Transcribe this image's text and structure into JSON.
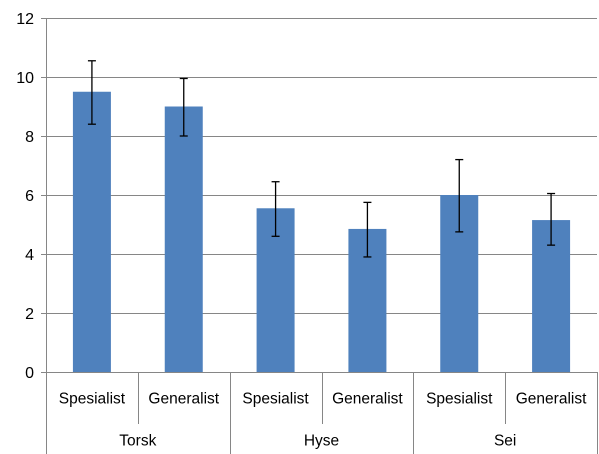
{
  "chart_data": {
    "type": "bar",
    "title": "",
    "xlabel": "",
    "ylabel": "",
    "ylim": [
      0,
      12
    ],
    "yticks": [
      0,
      2,
      4,
      6,
      8,
      10,
      12
    ],
    "grid": true,
    "legend": "none",
    "groups": [
      {
        "name": "Torsk",
        "categories": [
          "Spesialist",
          "Generalist"
        ]
      },
      {
        "name": "Hyse",
        "categories": [
          "Spesialist",
          "Generalist"
        ]
      },
      {
        "name": "Sei",
        "categories": [
          "Spesialist",
          "Generalist"
        ]
      }
    ],
    "categories": [
      "Spesialist",
      "Generalist",
      "Spesialist",
      "Generalist",
      "Spesialist",
      "Generalist"
    ],
    "values": [
      9.5,
      9.0,
      5.55,
      4.85,
      6.0,
      5.15
    ],
    "error_low": [
      8.4,
      8.0,
      4.6,
      3.9,
      4.75,
      4.3
    ],
    "error_high": [
      10.55,
      9.95,
      6.45,
      5.75,
      7.2,
      6.05
    ],
    "colors": {
      "bar": "#4F81BD",
      "grid": "#868686",
      "axis": "#868686",
      "errorbar": "#000000"
    }
  }
}
